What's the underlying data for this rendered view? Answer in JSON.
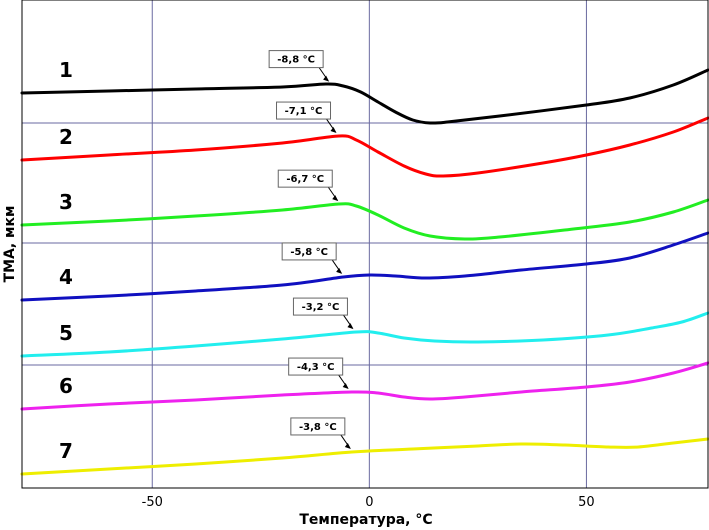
{
  "chart_data": {
    "type": "line",
    "title": "",
    "xlabel": "Температура, °С",
    "ylabel": "ТМА, мкм",
    "xlim": [
      -80,
      78
    ],
    "x_ticks": [
      -50,
      0,
      50
    ],
    "x_tick_labels": [
      "-50",
      "0",
      "50"
    ],
    "grid": true,
    "legend": "none",
    "y_ticks_shown": false,
    "series": [
      {
        "name": "1",
        "color": "#000000",
        "annotation": "-8,8 °С",
        "annotation_x": -8.8,
        "points": [
          [
            -80,
            93
          ],
          [
            -60,
            91
          ],
          [
            -40,
            89
          ],
          [
            -20,
            87
          ],
          [
            -10,
            84
          ],
          [
            -6,
            86
          ],
          [
            -2,
            92
          ],
          [
            2,
            102
          ],
          [
            6,
            112
          ],
          [
            10,
            120
          ],
          [
            14,
            123
          ],
          [
            18,
            122
          ],
          [
            30,
            116
          ],
          [
            50,
            105
          ],
          [
            60,
            98
          ],
          [
            70,
            85
          ],
          [
            78,
            70
          ]
        ]
      },
      {
        "name": "2",
        "color": "#ff0000",
        "annotation": "-7,1 °С",
        "annotation_x": -7.1,
        "points": [
          [
            -80,
            160
          ],
          [
            -60,
            155
          ],
          [
            -40,
            150
          ],
          [
            -20,
            143
          ],
          [
            -7,
            136
          ],
          [
            -3,
            140
          ],
          [
            2,
            152
          ],
          [
            8,
            166
          ],
          [
            13,
            174
          ],
          [
            17,
            176
          ],
          [
            25,
            173
          ],
          [
            40,
            163
          ],
          [
            50,
            155
          ],
          [
            60,
            145
          ],
          [
            70,
            132
          ],
          [
            78,
            118
          ]
        ]
      },
      {
        "name": "3",
        "color": "#22ee22",
        "annotation": "-6,7 °С",
        "annotation_x": -6.7,
        "points": [
          [
            -80,
            225
          ],
          [
            -60,
            221
          ],
          [
            -40,
            216
          ],
          [
            -20,
            210
          ],
          [
            -7,
            204
          ],
          [
            -3,
            206
          ],
          [
            2,
            215
          ],
          [
            8,
            228
          ],
          [
            14,
            236
          ],
          [
            22,
            239
          ],
          [
            30,
            237
          ],
          [
            45,
            230
          ],
          [
            60,
            222
          ],
          [
            70,
            212
          ],
          [
            78,
            200
          ]
        ]
      },
      {
        "name": "4",
        "color": "#1010c0",
        "annotation": "-5,8 °С",
        "annotation_x": -5.8,
        "points": [
          [
            -80,
            300
          ],
          [
            -60,
            296
          ],
          [
            -40,
            291
          ],
          [
            -20,
            285
          ],
          [
            -6,
            277
          ],
          [
            0,
            275
          ],
          [
            6,
            276
          ],
          [
            13,
            278
          ],
          [
            22,
            276
          ],
          [
            35,
            270
          ],
          [
            50,
            264
          ],
          [
            60,
            258
          ],
          [
            70,
            245
          ],
          [
            78,
            233
          ]
        ]
      },
      {
        "name": "5",
        "color": "#22eeee",
        "annotation": "-3,2 °С",
        "annotation_x": -3.2,
        "points": [
          [
            -80,
            356
          ],
          [
            -60,
            352
          ],
          [
            -40,
            346
          ],
          [
            -20,
            339
          ],
          [
            -3,
            332
          ],
          [
            2,
            333
          ],
          [
            8,
            338
          ],
          [
            15,
            341
          ],
          [
            25,
            342
          ],
          [
            40,
            340
          ],
          [
            55,
            335
          ],
          [
            65,
            328
          ],
          [
            72,
            322
          ],
          [
            78,
            313
          ]
        ]
      },
      {
        "name": "6",
        "color": "#ee22ee",
        "annotation": "-4,3 °С",
        "annotation_x": -4.3,
        "points": [
          [
            -80,
            409
          ],
          [
            -60,
            404
          ],
          [
            -40,
            400
          ],
          [
            -20,
            395
          ],
          [
            -4,
            392
          ],
          [
            2,
            393
          ],
          [
            8,
            397
          ],
          [
            14,
            399
          ],
          [
            22,
            397
          ],
          [
            35,
            392
          ],
          [
            50,
            387
          ],
          [
            60,
            382
          ],
          [
            70,
            373
          ],
          [
            78,
            363
          ]
        ]
      },
      {
        "name": "7",
        "color": "#eeee00",
        "annotation": "-3,8 °С",
        "annotation_x": -3.8,
        "points": [
          [
            -80,
            474
          ],
          [
            -60,
            469
          ],
          [
            -40,
            464
          ],
          [
            -20,
            458
          ],
          [
            -4,
            452
          ],
          [
            10,
            449
          ],
          [
            25,
            446
          ],
          [
            35,
            444
          ],
          [
            45,
            445
          ],
          [
            55,
            447
          ],
          [
            62,
            447
          ],
          [
            70,
            443
          ],
          [
            78,
            439
          ]
        ]
      }
    ]
  }
}
